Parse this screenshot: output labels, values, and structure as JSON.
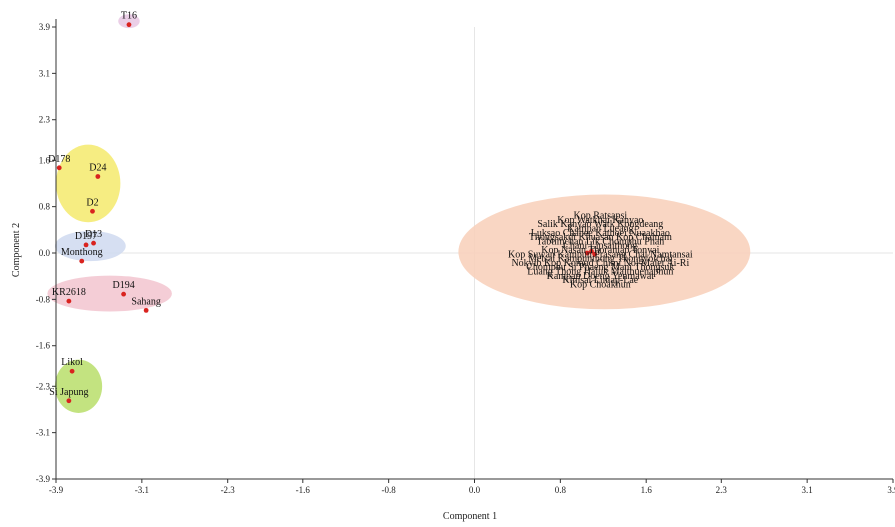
{
  "chart_data": {
    "type": "scatter",
    "title": "",
    "xlabel": "Component 1",
    "ylabel": "Component 2",
    "xlim": [
      -3.9,
      3.9
    ],
    "ylim": [
      -3.9,
      3.9
    ],
    "x_ticks": [
      "-3.9",
      "-3.1",
      "-2.3",
      "-1.6",
      "-0.8",
      "0.0",
      "0.8",
      "1.6",
      "2.3",
      "3.1",
      "3.9"
    ],
    "y_ticks": [
      "3.9",
      "3.1",
      "2.3",
      "1.6",
      "0.8",
      "0.0",
      "-0.8",
      "-1.6",
      "-2.3",
      "-3.1",
      "-3.9"
    ],
    "grid": "origin-lines",
    "point_color": "#d9231f",
    "groups": [
      {
        "color": "#e7c7e3",
        "ellipse": {
          "cx": -3.22,
          "cy": 4.0,
          "rx": 0.1,
          "ry": 0.12
        },
        "points": [
          {
            "label": "T16",
            "x": -3.22,
            "y": 3.94
          }
        ]
      },
      {
        "color": "#f5ea6c",
        "ellipse": {
          "cx": -3.6,
          "cy": 1.2,
          "rx": 0.3,
          "ry": 0.67
        },
        "points": [
          {
            "label": "D178",
            "x": -3.87,
            "y": 1.47
          },
          {
            "label": "D24",
            "x": -3.51,
            "y": 1.32
          },
          {
            "label": "D2",
            "x": -3.56,
            "y": 0.72
          }
        ]
      },
      {
        "color": "#cfd9f0",
        "ellipse": {
          "cx": -3.58,
          "cy": 0.12,
          "rx": 0.33,
          "ry": 0.26
        },
        "points": [
          {
            "label": "D197",
            "x": -3.62,
            "y": 0.14
          },
          {
            "label": "D13",
            "x": -3.55,
            "y": 0.17
          },
          {
            "label": "Monthong",
            "x": -3.66,
            "y": -0.14
          }
        ]
      },
      {
        "color": "#f2c4cf",
        "ellipse": {
          "cx": -3.4,
          "cy": -0.7,
          "rx": 0.58,
          "ry": 0.31
        },
        "points": [
          {
            "label": "KR2618",
            "x": -3.78,
            "y": -0.83
          },
          {
            "label": "D194",
            "x": -3.27,
            "y": -0.71
          },
          {
            "label": "Sahang",
            "x": -3.06,
            "y": -0.99
          }
        ]
      },
      {
        "color": "#b9de6a",
        "ellipse": {
          "cx": -3.69,
          "cy": -2.3,
          "rx": 0.22,
          "ry": 0.46
        },
        "points": [
          {
            "label": "Likol",
            "x": -3.75,
            "y": -2.04
          },
          {
            "label": "Si Japung",
            "x": -3.78,
            "y": -2.55
          }
        ]
      },
      {
        "color": "#f8cfb8",
        "ellipse": {
          "cx": 1.21,
          "cy": 0.02,
          "rx": 1.36,
          "ry": 0.99
        },
        "points": [
          {
            "label": "",
            "x": 1.05,
            "y": 0.0
          },
          {
            "label": "",
            "x": 1.09,
            "y": 0.03
          },
          {
            "label": "",
            "x": 1.12,
            "y": -0.02
          }
        ],
        "cluster_labels": [
          "Kop Ratsapsi",
          "Kop Watkhai Kanyao",
          "Salik Kanyao Watk Kongdeang",
          "Kampan Lueang",
          "Luksao Chanee Kathoei Nuaakhao",
          "Thongsakdi Khuasan Kop Chainam",
          "Tabtimchan Lik Chomphu Phan",
          "Chani Lipsaithong",
          "Kop Nasan Thoraniap Tonyai",
          "Kop Suwan Kampun Prasang Chai Namtansai",
          "Metsai Kampunthong Thongyoichai",
          "Nokyib Kop Komod Chimi Nol Malet Ai-Ri",
          "Chomphu Si Phaeng Mani Thongsuk",
          "Luang Thong Haluk Maithuenaphun",
          "Kampan Doeng Yenmawat",
          "Kimsai Linlap-Lae",
          "Kop Choakhun"
        ]
      }
    ]
  }
}
